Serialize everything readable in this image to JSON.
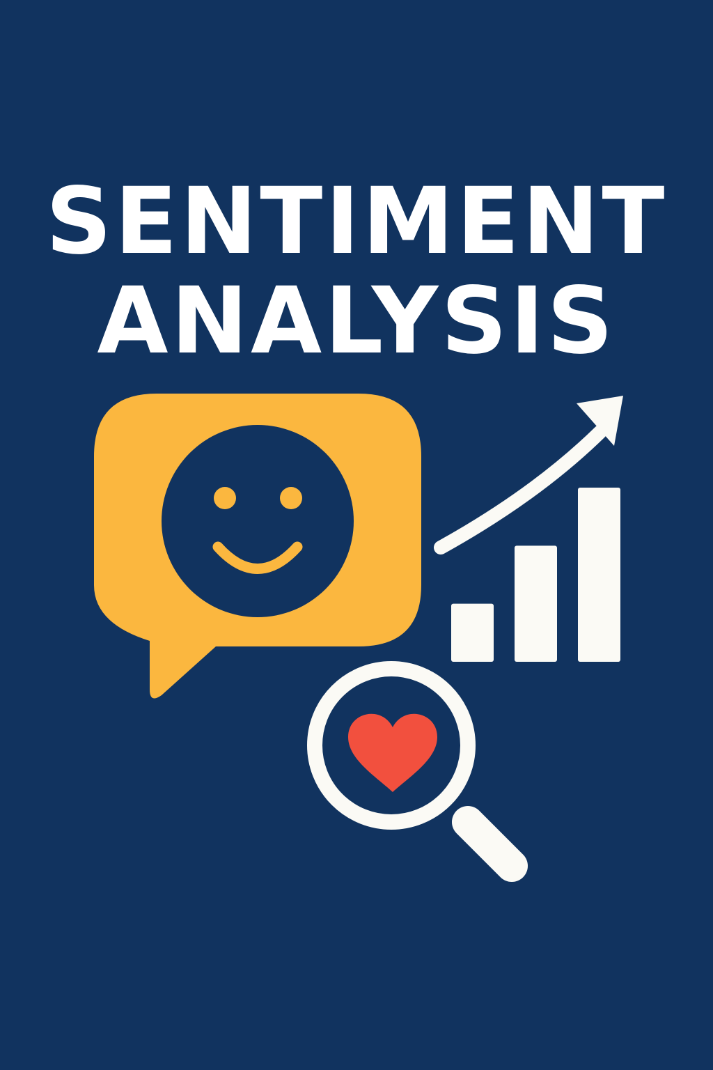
{
  "title": {
    "line1": "SENTIMENT",
    "line2": "ANALYSIS"
  },
  "colors": {
    "background": "#11335f",
    "text": "#ffffff",
    "bubble": "#fbb73f",
    "heart": "#f2503e",
    "icon_light": "#fbfaf5"
  },
  "icons": {
    "chat": "smiley-chat-bubble-icon",
    "growth": "growth-arrow-icon",
    "bars": "bar-chart-icon",
    "search": "magnifying-glass-heart-icon"
  },
  "bar_chart": {
    "values": [
      1,
      2,
      3
    ],
    "trend": "up"
  }
}
